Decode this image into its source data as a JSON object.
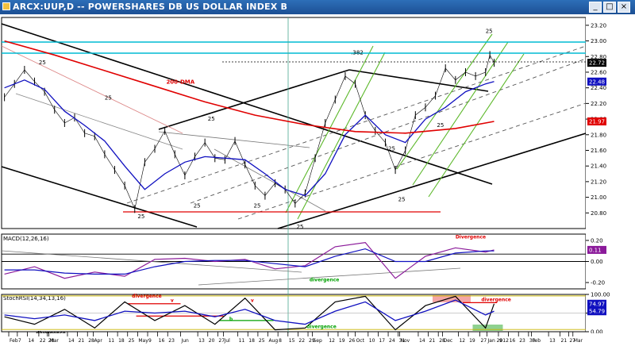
{
  "window": {
    "title": "ARCX:UUP,D -- POWERSHARES DB US DOLLAR INDEX B",
    "controls": [
      "_",
      "□",
      "×"
    ]
  },
  "chart_data": [
    {
      "panel": "price",
      "type": "line",
      "ylim": [
        20.6,
        23.3
      ],
      "price_ticks": [
        "23.20",
        "23.00",
        "22.80",
        "22.60",
        "22.40",
        "22.20",
        "22.00",
        "21.80",
        "21.60",
        "21.40",
        "21.20",
        "21.00",
        "20.80"
      ],
      "price_tick_values": [
        23.2,
        23.0,
        22.8,
        22.6,
        22.4,
        22.2,
        22.0,
        21.8,
        21.6,
        21.4,
        21.2,
        21.0,
        20.8
      ],
      "right_labels": [
        {
          "text": "22.72",
          "value": 22.72,
          "color": "#000000"
        },
        {
          "text": "22.48",
          "value": 22.48,
          "color": "#1010c0"
        },
        {
          "text": "21.97",
          "value": 21.97,
          "color": "#e00000"
        }
      ],
      "annotations": [
        {
          "text": ".382",
          "x": "2011-09-28",
          "y": 22.83,
          "color": "#000000"
        },
        {
          "text": "200-DMA",
          "x": "2011-05-22",
          "y": 22.45,
          "color": "#e00000"
        },
        {
          "text": "25",
          "x": "2011-02-22",
          "y": 22.7,
          "color": "#000000"
        },
        {
          "text": "25",
          "x": "2011-04-09",
          "y": 22.25,
          "color": "#000000"
        },
        {
          "text": "25",
          "x": "2011-06-20",
          "y": 21.98,
          "color": "#000000"
        },
        {
          "text": "25",
          "x": "2011-05-02",
          "y": 20.73,
          "color": "#000000"
        },
        {
          "text": "25",
          "x": "2011-06-10",
          "y": 20.87,
          "color": "#000000"
        },
        {
          "text": "25",
          "x": "2011-07-22",
          "y": 20.87,
          "color": "#000000"
        },
        {
          "text": "25",
          "x": "2011-08-21",
          "y": 20.6,
          "color": "#000000"
        },
        {
          "text": "25",
          "x": "2011-10-24",
          "y": 21.6,
          "color": "#000000"
        },
        {
          "text": "25",
          "x": "2011-10-31",
          "y": 20.95,
          "color": "#000000"
        },
        {
          "text": "25",
          "x": "2011-11-27",
          "y": 21.9,
          "color": "#000000"
        },
        {
          "text": "25",
          "x": "2011-12-31",
          "y": 23.1,
          "color": "#000000"
        }
      ],
      "series": [
        {
          "name": "ARCX:UUP",
          "color": "#000000",
          "x": [
            "2011-01-29",
            "2011-02-05",
            "2011-02-12",
            "2011-02-19",
            "2011-02-26",
            "2011-03-05",
            "2011-03-12",
            "2011-03-19",
            "2011-03-26",
            "2011-04-02",
            "2011-04-09",
            "2011-04-16",
            "2011-04-23",
            "2011-04-30",
            "2011-05-07",
            "2011-05-14",
            "2011-05-21",
            "2011-05-28",
            "2011-06-04",
            "2011-06-11",
            "2011-06-18",
            "2011-06-25",
            "2011-07-02",
            "2011-07-09",
            "2011-07-16",
            "2011-07-23",
            "2011-07-30",
            "2011-08-06",
            "2011-08-13",
            "2011-08-20",
            "2011-08-27",
            "2011-09-03",
            "2011-09-10",
            "2011-09-17",
            "2011-09-24",
            "2011-10-01",
            "2011-10-08",
            "2011-10-15",
            "2011-10-22",
            "2011-10-29",
            "2011-11-05",
            "2011-11-12",
            "2011-11-19",
            "2011-11-26",
            "2011-12-03",
            "2011-12-10",
            "2011-12-17",
            "2011-12-24",
            "2011-12-31",
            "2012-01-03",
            "2012-01-06"
          ],
          "y": [
            22.28,
            22.45,
            22.63,
            22.48,
            22.35,
            22.12,
            21.95,
            22.02,
            21.82,
            21.78,
            21.55,
            21.35,
            21.15,
            20.85,
            21.45,
            21.62,
            21.85,
            21.55,
            21.28,
            21.52,
            21.7,
            21.5,
            21.48,
            21.72,
            21.42,
            21.15,
            21.02,
            21.18,
            21.1,
            20.92,
            21.05,
            21.5,
            21.95,
            22.25,
            22.55,
            22.45,
            22.05,
            21.85,
            21.7,
            21.35,
            21.6,
            22.05,
            22.15,
            22.3,
            22.65,
            22.5,
            22.6,
            22.55,
            22.6,
            22.82,
            22.72
          ]
        },
        {
          "name": "EMA",
          "color": "#1010c0",
          "x": [
            "2011-01-29",
            "2011-02-12",
            "2011-02-26",
            "2011-03-12",
            "2011-03-26",
            "2011-04-09",
            "2011-04-23",
            "2011-05-07",
            "2011-05-21",
            "2011-06-04",
            "2011-06-18",
            "2011-07-02",
            "2011-07-16",
            "2011-07-30",
            "2011-08-13",
            "2011-08-27",
            "2011-09-10",
            "2011-09-24",
            "2011-10-08",
            "2011-10-22",
            "2011-11-05",
            "2011-11-19",
            "2011-12-03",
            "2011-12-17",
            "2011-12-31",
            "2012-01-06"
          ],
          "y": [
            22.4,
            22.5,
            22.38,
            22.1,
            21.92,
            21.72,
            21.4,
            21.1,
            21.3,
            21.45,
            21.52,
            21.5,
            21.48,
            21.3,
            21.1,
            21.02,
            21.3,
            21.8,
            22.05,
            21.8,
            21.7,
            22.0,
            22.15,
            22.35,
            22.45,
            22.48
          ]
        },
        {
          "name": "200-DMA",
          "color": "#e00000",
          "x": [
            "2011-01-29",
            "2011-03-05",
            "2011-04-09",
            "2011-05-14",
            "2011-06-18",
            "2011-07-23",
            "2011-08-27",
            "2011-10-01",
            "2011-11-05",
            "2011-12-10",
            "2012-01-06"
          ],
          "y": [
            23.0,
            22.82,
            22.62,
            22.42,
            22.22,
            22.05,
            21.93,
            21.84,
            21.82,
            21.88,
            21.97
          ]
        }
      ]
    },
    {
      "panel": "macd",
      "type": "line",
      "label": "MACD(12,26,16)",
      "ylim": [
        -0.26,
        0.26
      ],
      "ticks": [
        "0.20",
        "0.00",
        "-0.20"
      ],
      "tick_values": [
        0.2,
        0.0,
        -0.2
      ],
      "right_value": {
        "text": "0.11",
        "value": 0.11
      },
      "annotations": [
        {
          "text": "Divergence",
          "x": "2011-12-10",
          "y": 0.22,
          "color": "#e00000"
        },
        {
          "text": "divergence",
          "x": "2011-08-30",
          "y": -0.19,
          "color": "#00a000"
        }
      ],
      "series": [
        {
          "name": "MACD",
          "color": "#8b1a9a",
          "x": [
            "2011-01-29",
            "2011-02-19",
            "2011-03-12",
            "2011-04-02",
            "2011-04-23",
            "2011-05-14",
            "2011-06-04",
            "2011-06-25",
            "2011-07-16",
            "2011-08-06",
            "2011-08-27",
            "2011-09-17",
            "2011-10-08",
            "2011-10-29",
            "2011-11-19",
            "2011-12-10",
            "2011-12-31",
            "2012-01-06"
          ],
          "y": [
            -0.12,
            -0.05,
            -0.16,
            -0.1,
            -0.14,
            0.02,
            0.03,
            0.0,
            0.02,
            -0.07,
            -0.04,
            0.14,
            0.18,
            -0.16,
            0.05,
            0.13,
            0.09,
            0.11
          ]
        },
        {
          "name": "Signal",
          "color": "#1010c0",
          "x": [
            "2011-01-29",
            "2011-02-19",
            "2011-03-12",
            "2011-04-02",
            "2011-04-23",
            "2011-05-14",
            "2011-06-04",
            "2011-06-25",
            "2011-07-16",
            "2011-08-06",
            "2011-08-27",
            "2011-09-17",
            "2011-10-08",
            "2011-10-29",
            "2011-11-19",
            "2011-12-10",
            "2011-12-31",
            "2012-01-06"
          ],
          "y": [
            -0.08,
            -0.08,
            -0.11,
            -0.12,
            -0.12,
            -0.05,
            0.0,
            0.01,
            0.01,
            -0.02,
            -0.05,
            0.05,
            0.12,
            0.0,
            0.0,
            0.08,
            0.1,
            0.1
          ]
        }
      ]
    },
    {
      "panel": "stochrsi",
      "type": "line",
      "label": "StochRSI(14,34,13,16)",
      "ylim": [
        0,
        100
      ],
      "ticks": [
        "100.00",
        "50.00",
        "0.00"
      ],
      "tick_values": [
        100,
        50,
        0
      ],
      "right_values": [
        {
          "text": "74.97",
          "value": 74.97,
          "color": "#1010c0"
        },
        {
          "text": "54.79",
          "value": 54.79,
          "color": "#1010c0"
        }
      ],
      "annotations": [
        {
          "text": "divergence",
          "x": "2011-04-28",
          "y": 92,
          "color": "#e00000"
        },
        {
          "text": "divergence",
          "x": "2011-12-28",
          "y": 82,
          "color": "#e00000"
        },
        {
          "text": "v",
          "x": "2011-05-25",
          "y": 80,
          "color": "#e00000"
        },
        {
          "text": "v",
          "x": "2011-07-20",
          "y": 80,
          "color": "#e00000"
        },
        {
          "text": "b",
          "x": "2011-07-05",
          "y": 30,
          "color": "#00a000"
        },
        {
          "text": "divergence",
          "x": "2011-08-28",
          "y": 10,
          "color": "#00a000"
        },
        {
          "text": "divergence",
          "x": "2011-02-20",
          "y": -12,
          "color": "#000000"
        }
      ],
      "series": [
        {
          "name": "StochRSI",
          "color": "#000000",
          "x": [
            "2011-01-29",
            "2011-02-19",
            "2011-03-12",
            "2011-04-02",
            "2011-04-23",
            "2011-05-14",
            "2011-06-04",
            "2011-06-25",
            "2011-07-16",
            "2011-08-06",
            "2011-08-27",
            "2011-09-17",
            "2011-10-08",
            "2011-10-29",
            "2011-11-19",
            "2011-12-10",
            "2011-12-31",
            "2012-01-06"
          ],
          "y": [
            40,
            20,
            60,
            10,
            80,
            30,
            70,
            20,
            90,
            5,
            10,
            80,
            95,
            5,
            70,
            95,
            10,
            75
          ]
        },
        {
          "name": "K",
          "color": "#1010c0",
          "x": [
            "2011-01-29",
            "2011-02-19",
            "2011-03-12",
            "2011-04-02",
            "2011-04-23",
            "2011-05-14",
            "2011-06-04",
            "2011-06-25",
            "2011-07-16",
            "2011-08-06",
            "2011-08-27",
            "2011-09-17",
            "2011-10-08",
            "2011-10-29",
            "2011-11-19",
            "2011-12-10",
            "2011-12-31",
            "2012-01-06"
          ],
          "y": [
            45,
            35,
            45,
            30,
            55,
            50,
            55,
            40,
            60,
            30,
            20,
            55,
            80,
            30,
            55,
            85,
            45,
            55
          ]
        }
      ]
    }
  ],
  "x_axis": {
    "labels": [
      "Feb",
      "7",
      "14",
      "22",
      "28",
      "Mar",
      "14",
      "21",
      "28",
      "Apr",
      "11",
      "18",
      "25",
      "May",
      "9",
      "16",
      "23",
      "Jun",
      "13",
      "20",
      "27",
      "Jul",
      "11",
      "18",
      "25",
      "Aug",
      "8",
      "15",
      "22",
      "29",
      "Sep",
      "12",
      "19",
      "26",
      "Oct",
      "10",
      "17",
      "24",
      "31",
      "Nov",
      "14",
      "21",
      "28",
      "Dec",
      "12",
      "19",
      "27",
      "Jan 2012",
      "9",
      "16",
      "23",
      "30",
      "Feb",
      "13",
      "21",
      "27",
      "Mar"
    ],
    "dates": [
      "2011-02-01",
      "2011-02-07",
      "2011-02-14",
      "2011-02-22",
      "2011-02-28",
      "2011-03-01",
      "2011-03-14",
      "2011-03-21",
      "2011-03-28",
      "2011-04-01",
      "2011-04-11",
      "2011-04-18",
      "2011-04-25",
      "2011-05-02",
      "2011-05-09",
      "2011-05-16",
      "2011-05-23",
      "2011-06-01",
      "2011-06-13",
      "2011-06-20",
      "2011-06-27",
      "2011-07-01",
      "2011-07-11",
      "2011-07-18",
      "2011-07-25",
      "2011-08-01",
      "2011-08-08",
      "2011-08-15",
      "2011-08-22",
      "2011-08-29",
      "2011-09-01",
      "2011-09-12",
      "2011-09-19",
      "2011-09-26",
      "2011-10-01",
      "2011-10-10",
      "2011-10-17",
      "2011-10-24",
      "2011-10-31",
      "2011-11-01",
      "2011-11-14",
      "2011-11-21",
      "2011-11-28",
      "2011-12-01",
      "2011-12-12",
      "2011-12-19",
      "2011-12-27",
      "2012-01-01",
      "2012-01-09",
      "2012-01-16",
      "2012-01-23",
      "2012-01-30",
      "2012-02-01",
      "2012-02-13",
      "2012-02-21",
      "2012-02-27",
      "2012-03-01"
    ],
    "range": [
      "2011-01-27",
      "2012-03-10"
    ]
  }
}
